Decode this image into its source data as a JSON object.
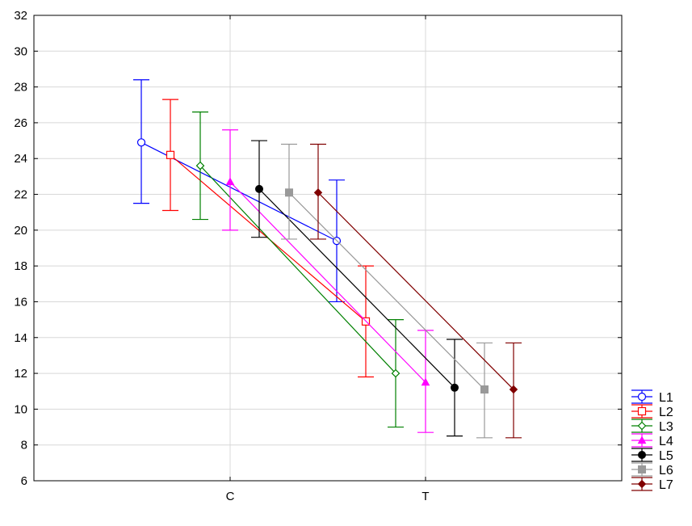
{
  "chart_data": {
    "type": "line",
    "title": "",
    "xlabel": "",
    "ylabel": "",
    "categories": [
      "C",
      "T"
    ],
    "ylim": [
      6,
      32
    ],
    "yticks": [
      6,
      8,
      10,
      12,
      14,
      16,
      18,
      20,
      22,
      24,
      26,
      28,
      30,
      32
    ],
    "grid": true,
    "legend_position": "bottom-right",
    "error_bars": true,
    "series": [
      {
        "name": "L1",
        "color": "#0000ff",
        "marker": "open-circle",
        "values": [
          24.9,
          19.4
        ],
        "lower": [
          21.5,
          16.0
        ],
        "upper": [
          28.4,
          22.8
        ]
      },
      {
        "name": "L2",
        "color": "#ff0000",
        "marker": "open-square",
        "values": [
          24.2,
          14.9
        ],
        "lower": [
          21.1,
          11.8
        ],
        "upper": [
          27.3,
          18.0
        ]
      },
      {
        "name": "L3",
        "color": "#008000",
        "marker": "open-diamond",
        "values": [
          23.6,
          12.0
        ],
        "lower": [
          20.6,
          9.0
        ],
        "upper": [
          26.6,
          15.0
        ]
      },
      {
        "name": "L4",
        "color": "#ff00ff",
        "marker": "triangle",
        "values": [
          22.7,
          11.5
        ],
        "lower": [
          20.0,
          8.7
        ],
        "upper": [
          25.6,
          14.4
        ]
      },
      {
        "name": "L5",
        "color": "#000000",
        "marker": "filled-circle",
        "values": [
          22.3,
          11.2
        ],
        "lower": [
          19.6,
          8.5
        ],
        "upper": [
          25.0,
          13.9
        ]
      },
      {
        "name": "L6",
        "color": "#999999",
        "marker": "filled-square",
        "values": [
          22.1,
          11.1
        ],
        "lower": [
          19.5,
          8.4
        ],
        "upper": [
          24.8,
          13.7
        ]
      },
      {
        "name": "L7",
        "color": "#800000",
        "marker": "filled-diamond",
        "values": [
          22.1,
          11.1
        ],
        "lower": [
          19.5,
          8.4
        ],
        "upper": [
          24.8,
          13.7
        ]
      }
    ]
  }
}
